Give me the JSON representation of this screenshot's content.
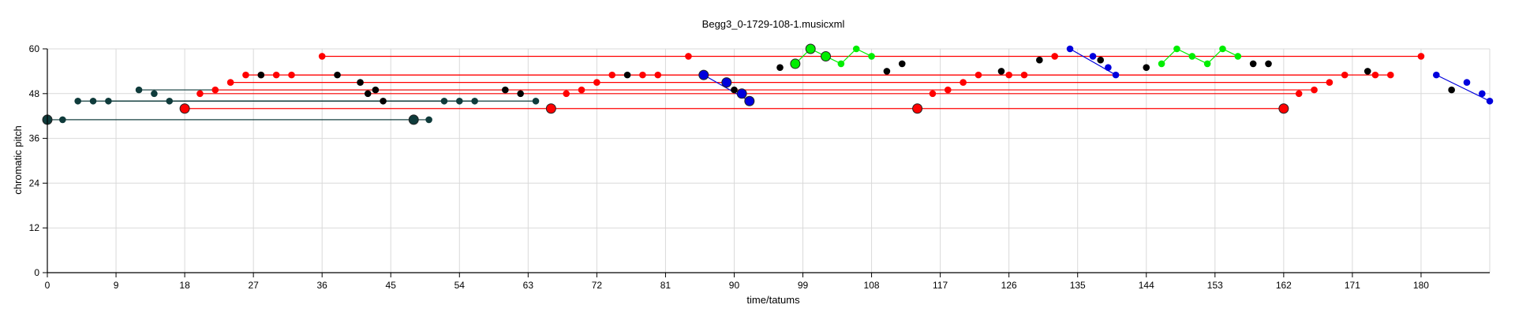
{
  "chart_data": {
    "type": "scatter",
    "title": "Begg3_0-1729-108-1.musicxml",
    "xlabel": "time/tatums",
    "ylabel": "chromatic pitch",
    "xlim": [
      0,
      189
    ],
    "ylim": [
      0,
      60
    ],
    "x_ticks": [
      "0",
      "9",
      "18",
      "27",
      "36",
      "45",
      "54",
      "63",
      "72",
      "81",
      "90",
      "99",
      "108",
      "117",
      "126",
      "135",
      "144",
      "153",
      "162",
      "171",
      "180"
    ],
    "x_tick_values": [
      0,
      9,
      18,
      27,
      36,
      45,
      54,
      63,
      72,
      81,
      90,
      99,
      108,
      117,
      126,
      135,
      144,
      153,
      162,
      171,
      180
    ],
    "y_ticks": [
      "0",
      "12",
      "24",
      "36",
      "48",
      "60"
    ],
    "y_tick_values": [
      0,
      12,
      24,
      36,
      48,
      60
    ],
    "grid": true,
    "colors": {
      "dark": "#0f3b3b",
      "red": "#ff0000",
      "black": "#000000",
      "blue": "#0000dd",
      "green": "#00ee00",
      "grid": "#d9d9d9"
    },
    "series": [
      {
        "color": "dark",
        "points": [
          [
            0,
            41
          ],
          [
            2,
            41
          ],
          [
            4,
            46
          ],
          [
            6,
            46
          ],
          [
            8,
            46
          ],
          [
            12,
            49
          ],
          [
            14,
            48
          ],
          [
            16,
            46
          ],
          [
            48,
            41
          ],
          [
            50,
            41
          ],
          [
            52,
            46
          ],
          [
            54,
            46
          ],
          [
            56,
            46
          ],
          [
            64,
            46
          ]
        ],
        "sizes": [
          2,
          1,
          1,
          1,
          1,
          1,
          1,
          1,
          2,
          1,
          1,
          1,
          1,
          1
        ]
      },
      {
        "color": "red",
        "points": [
          [
            18,
            44
          ],
          [
            20,
            48
          ],
          [
            22,
            49
          ],
          [
            24,
            51
          ],
          [
            26,
            53
          ],
          [
            28,
            53
          ],
          [
            30,
            53
          ],
          [
            32,
            53
          ],
          [
            36,
            58
          ],
          [
            66,
            44
          ],
          [
            68,
            48
          ],
          [
            70,
            49
          ],
          [
            72,
            51
          ],
          [
            74,
            53
          ],
          [
            78,
            53
          ],
          [
            80,
            53
          ],
          [
            84,
            58
          ],
          [
            114,
            44
          ],
          [
            116,
            48
          ],
          [
            118,
            49
          ],
          [
            120,
            51
          ],
          [
            122,
            53
          ],
          [
            126,
            53
          ],
          [
            128,
            53
          ],
          [
            132,
            58
          ],
          [
            162,
            44
          ],
          [
            164,
            48
          ],
          [
            166,
            49
          ],
          [
            168,
            51
          ],
          [
            170,
            53
          ],
          [
            174,
            53
          ],
          [
            176,
            53
          ],
          [
            180,
            58
          ]
        ],
        "sizes": [
          2,
          1,
          1,
          1,
          1,
          1,
          1,
          1,
          1,
          2,
          1,
          1,
          1,
          1,
          1,
          1,
          1,
          2,
          1,
          1,
          1,
          1,
          1,
          1,
          1,
          2,
          1,
          1,
          1,
          1,
          1,
          1,
          1
        ]
      },
      {
        "color": "black",
        "points": [
          [
            28,
            53
          ],
          [
            38,
            53
          ],
          [
            41,
            51
          ],
          [
            42,
            48
          ],
          [
            43,
            49
          ],
          [
            44,
            46
          ],
          [
            60,
            49
          ],
          [
            62,
            48
          ],
          [
            76,
            53
          ],
          [
            90,
            49
          ],
          [
            96,
            55
          ],
          [
            110,
            54
          ],
          [
            112,
            56
          ],
          [
            125,
            54
          ],
          [
            130,
            57
          ],
          [
            138,
            57
          ],
          [
            144,
            55
          ],
          [
            158,
            56
          ],
          [
            160,
            56
          ],
          [
            173,
            54
          ],
          [
            184,
            49
          ]
        ],
        "sizes": [
          1,
          1,
          1,
          1,
          1,
          1,
          1,
          1,
          1,
          1,
          1,
          1,
          1,
          1,
          1,
          1,
          1,
          1,
          1,
          1,
          1
        ]
      },
      {
        "color": "blue",
        "points": [
          [
            86,
            53
          ],
          [
            89,
            51
          ],
          [
            91,
            48
          ],
          [
            92,
            46
          ],
          [
            134,
            60
          ],
          [
            137,
            58
          ],
          [
            139,
            55
          ],
          [
            140,
            53
          ],
          [
            182,
            53
          ],
          [
            186,
            51
          ],
          [
            188,
            48
          ],
          [
            189,
            46
          ]
        ],
        "sizes": [
          2,
          2,
          2,
          2,
          1,
          1,
          1,
          1,
          1,
          1,
          1,
          1
        ]
      },
      {
        "color": "green",
        "points": [
          [
            98,
            56
          ],
          [
            100,
            60
          ],
          [
            102,
            58
          ],
          [
            104,
            56
          ],
          [
            106,
            60
          ],
          [
            108,
            58
          ],
          [
            146,
            56
          ],
          [
            148,
            60
          ],
          [
            150,
            58
          ],
          [
            152,
            56
          ],
          [
            154,
            60
          ],
          [
            156,
            58
          ]
        ],
        "sizes": [
          2,
          2,
          2,
          1,
          1,
          1,
          1,
          1,
          1,
          1,
          1,
          1
        ]
      }
    ],
    "line_links": [
      {
        "color": "dark",
        "from": [
          0,
          41
        ],
        "to": [
          48,
          41
        ]
      },
      {
        "color": "dark",
        "from": [
          2,
          41
        ],
        "to": [
          50,
          41
        ]
      },
      {
        "color": "dark",
        "from": [
          4,
          46
        ],
        "to": [
          52,
          46
        ]
      },
      {
        "color": "dark",
        "from": [
          8,
          46
        ],
        "to": [
          56,
          46
        ]
      },
      {
        "color": "dark",
        "from": [
          12,
          49
        ],
        "to": [
          60,
          49
        ]
      },
      {
        "color": "dark",
        "from": [
          16,
          46
        ],
        "to": [
          64,
          46
        ]
      },
      {
        "color": "red",
        "from": [
          18,
          44
        ],
        "to": [
          162,
          44
        ]
      },
      {
        "color": "red",
        "from": [
          20,
          48
        ],
        "to": [
          164,
          48
        ]
      },
      {
        "color": "red",
        "from": [
          22,
          49
        ],
        "to": [
          166,
          49
        ]
      },
      {
        "color": "red",
        "from": [
          24,
          51
        ],
        "to": [
          168,
          51
        ]
      },
      {
        "color": "red",
        "from": [
          26,
          53
        ],
        "to": [
          170,
          53
        ]
      },
      {
        "color": "red",
        "from": [
          32,
          53
        ],
        "to": [
          176,
          53
        ]
      },
      {
        "color": "red",
        "from": [
          36,
          58
        ],
        "to": [
          180,
          58
        ]
      },
      {
        "color": "blue",
        "from": [
          86,
          53
        ],
        "to": [
          92,
          46
        ]
      },
      {
        "color": "blue",
        "from": [
          134,
          60
        ],
        "to": [
          140,
          53
        ]
      },
      {
        "color": "blue",
        "from": [
          182,
          53
        ],
        "to": [
          189,
          46
        ]
      },
      {
        "color": "green",
        "from": [
          98,
          56
        ],
        "to": [
          108,
          58
        ],
        "chain": true
      },
      {
        "color": "green",
        "from": [
          146,
          56
        ],
        "to": [
          156,
          58
        ],
        "chain": true
      }
    ]
  }
}
